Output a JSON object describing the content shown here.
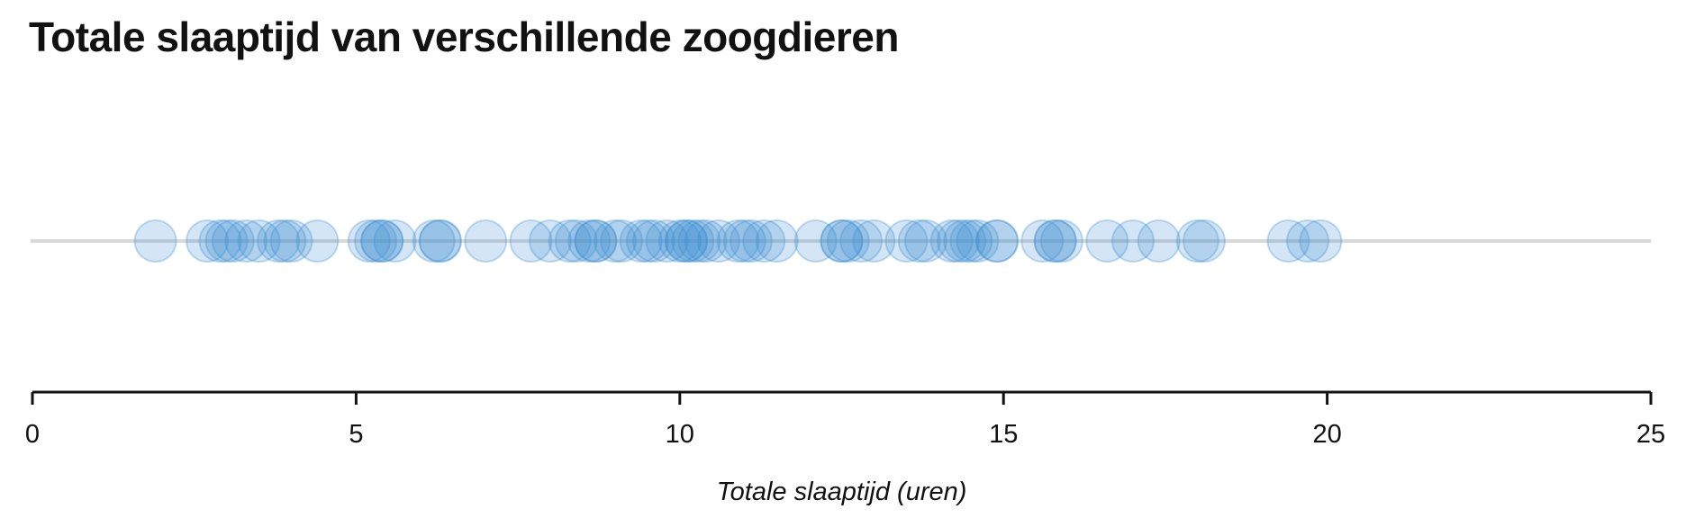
{
  "chart_data": {
    "type": "scatter",
    "title": "Totale slaaptijd van verschillende zoogdieren",
    "xlabel": "Totale slaaptijd (uren)",
    "ylabel": "",
    "xlim": [
      0,
      25
    ],
    "xticks": [
      "0",
      "5",
      "10",
      "15",
      "20",
      "25"
    ],
    "grid": false,
    "legend": "none",
    "point_color": "#3a8fd0",
    "baseline_color": "#d9d9d9",
    "x": [
      1.9,
      2.7,
      2.9,
      3.0,
      3.1,
      3.3,
      3.5,
      3.8,
      3.9,
      4.0,
      4.4,
      5.2,
      5.3,
      5.4,
      5.4,
      5.6,
      6.2,
      6.3,
      6.3,
      7.0,
      7.7,
      8.0,
      8.3,
      8.4,
      8.6,
      8.7,
      8.7,
      9.0,
      9.1,
      9.4,
      9.5,
      9.6,
      9.8,
      10.0,
      10.1,
      10.1,
      10.2,
      10.3,
      10.4,
      10.6,
      10.9,
      11.0,
      11.1,
      11.3,
      11.5,
      12.1,
      12.5,
      12.5,
      12.6,
      12.8,
      13.0,
      13.5,
      13.7,
      13.8,
      14.2,
      14.3,
      14.4,
      14.5,
      14.6,
      14.9,
      14.9,
      15.6,
      15.8,
      15.8,
      15.9,
      16.6,
      17.0,
      17.4,
      18.0,
      18.1,
      19.4,
      19.7,
      19.9
    ]
  }
}
